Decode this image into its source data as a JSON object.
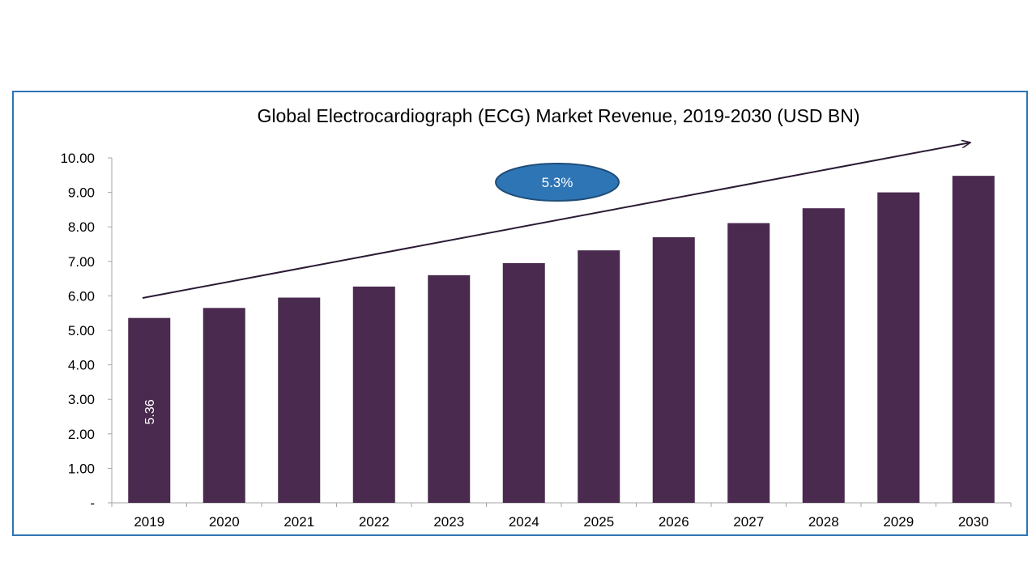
{
  "chart_data": {
    "type": "bar",
    "title": "Global Electrocardiograph (ECG) Market Revenue, 2019-2030 (USD BN)",
    "xlabel": "",
    "ylabel": "",
    "categories": [
      "2019",
      "2020",
      "2021",
      "2022",
      "2023",
      "2024",
      "2025",
      "2026",
      "2027",
      "2028",
      "2029",
      "2030"
    ],
    "values": [
      5.36,
      5.65,
      5.95,
      6.27,
      6.6,
      6.95,
      7.32,
      7.7,
      8.11,
      8.54,
      9.0,
      9.48
    ],
    "ylim": [
      0,
      10
    ],
    "yticks": [
      "-",
      "1.00",
      "2.00",
      "3.00",
      "4.00",
      "5.00",
      "6.00",
      "7.00",
      "8.00",
      "9.00",
      "10.00"
    ],
    "data_labels": [
      {
        "category": "2019",
        "text": "5.36"
      }
    ],
    "annotation": {
      "text": "5.3%",
      "fill": "#2e75b6"
    },
    "grid": false,
    "legend": "none",
    "colors": {
      "bar": "#4a2a4f",
      "arrow": "#2b1a33",
      "frame": "#2e75b6"
    }
  }
}
